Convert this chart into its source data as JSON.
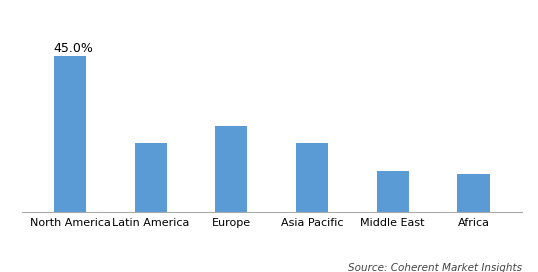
{
  "categories": [
    "North America",
    "Latin America",
    "Europe",
    "Asia Pacific",
    "Middle East",
    "Africa"
  ],
  "values": [
    45.0,
    20.0,
    25.0,
    20.0,
    12.0,
    11.0
  ],
  "bar_color": "#5B9BD5",
  "annotation_label": "45.0%",
  "annotation_bar_index": 0,
  "source_text": "Source: Coherent Market Insights",
  "ylim": [
    0,
    55
  ],
  "background_color": "#ffffff",
  "bar_width": 0.4,
  "annotation_fontsize": 9,
  "source_fontsize": 7.5,
  "tick_fontsize": 8
}
